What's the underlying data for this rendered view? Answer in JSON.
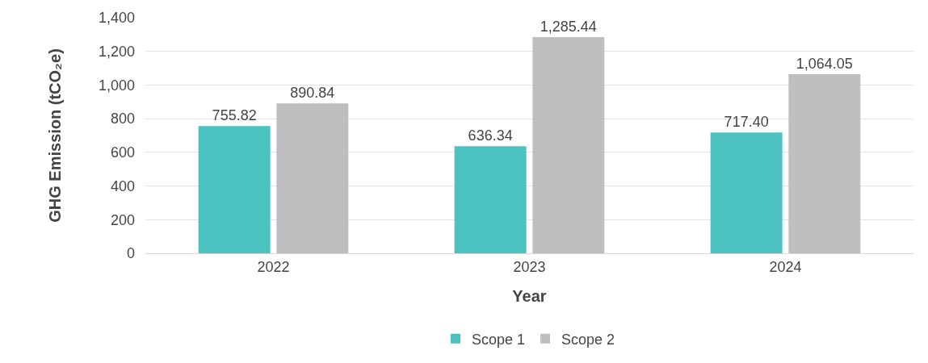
{
  "chart_data": {
    "type": "bar",
    "xlabel": "Year",
    "ylabel": "GHG Emission (tCO₂e)",
    "categories": [
      "2022",
      "2023",
      "2024"
    ],
    "series": [
      {
        "name": "Scope 1",
        "color": "#4bc2c0",
        "values": [
          755.82,
          636.34,
          717.4
        ],
        "value_labels": [
          "755.82",
          "636.34",
          "717.40"
        ]
      },
      {
        "name": "Scope 2",
        "color": "#bebec0",
        "values": [
          890.84,
          1285.44,
          1064.05
        ],
        "value_labels": [
          "890.84",
          "1,285.44",
          "1,064.05"
        ]
      }
    ],
    "ylim": [
      0,
      1400
    ],
    "yticks": [
      0,
      200,
      400,
      600,
      800,
      {
        "value": 1000,
        "label": "1,000"
      },
      {
        "value": 1200,
        "label": "1,200"
      },
      {
        "value": 1400,
        "label": "1,400"
      }
    ],
    "grid": "y",
    "legend": "bottom"
  }
}
